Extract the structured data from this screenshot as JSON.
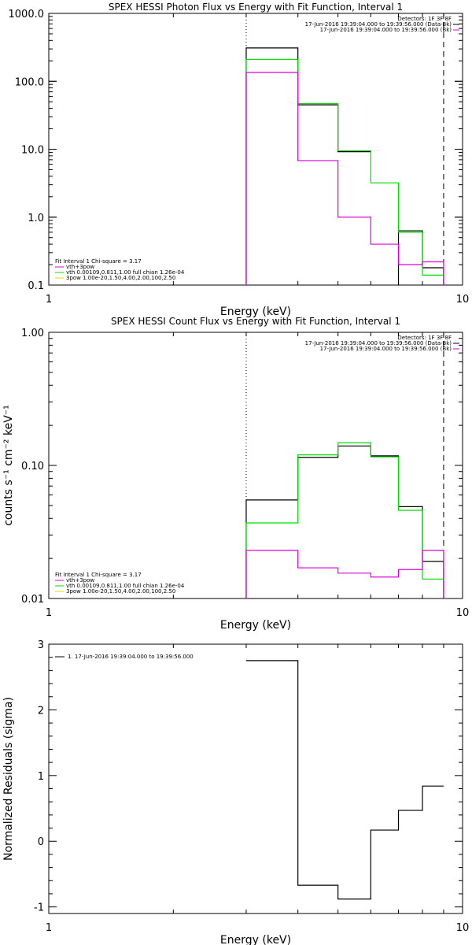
{
  "chart_data": [
    {
      "type": "line",
      "title": "SPEX HESSI Photon Flux vs Energy with Fit Function, Interval 1",
      "xlabel": "Energy (keV)",
      "ylabel": "",
      "xscale": "log",
      "yscale": "log",
      "xlim": [
        1,
        10
      ],
      "ylim": [
        0.1,
        1000
      ],
      "x_ticks": [
        1,
        10
      ],
      "y_ticks": [
        0.1,
        1.0,
        10.0,
        100.0,
        1000.0
      ],
      "x_tick_labels": [
        "1",
        "10"
      ],
      "y_tick_labels": [
        "0.1",
        "1.0",
        "10.0",
        "100.0",
        "1000.0"
      ],
      "vlines": [
        {
          "x": 3.0,
          "style": "dotted"
        },
        {
          "x": 9.0,
          "style": "dashed"
        }
      ],
      "legend_top_right": [
        "Detectors: 1F 3F 8F",
        "17-Jun-2016 19:39:04.000 to 19:39:56.000 (Data-Bk)",
        "17-Jun-2016 19:39:04.000 to 19:39:56.000 (Bk)"
      ],
      "legend_bottom_left": [
        "Fit Interval  1     Chi-square = 3.17",
        "vth+3pow",
        "vth 0.00109,0.811,1.00  full chian 1.26e-04",
        "3pow 1.00e-20,1.50,4.00,2.00,100,2.50"
      ],
      "series": [
        {
          "name": "(Data-Bk)",
          "color": "#000000",
          "step": true,
          "bin_edges": [
            3.0,
            4.0,
            5.0,
            6.0,
            7.0,
            8.0,
            9.0
          ],
          "values": [
            310,
            45,
            9.2,
            null,
            0.63,
            0.18
          ]
        },
        {
          "name": "vth+3pow",
          "color": "#00dd00",
          "step": true,
          "bin_edges": [
            3.0,
            4.0,
            5.0,
            6.0,
            7.0,
            8.0,
            9.0
          ],
          "values": [
            210,
            47,
            9.5,
            3.2,
            0.6,
            0.14
          ]
        },
        {
          "name": "(Bk)",
          "color": "#dd00dd",
          "step": true,
          "bin_edges": [
            3.0,
            4.0,
            5.0,
            6.0,
            7.0,
            8.0,
            9.0
          ],
          "values": [
            135,
            6.8,
            1.0,
            0.4,
            0.2,
            0.22
          ]
        }
      ]
    },
    {
      "type": "line",
      "title": "SPEX HESSI Count Flux vs Energy with Fit Function, Interval 1",
      "xlabel": "Energy (keV)",
      "ylabel": "counts s⁻¹ cm⁻² keV⁻¹",
      "xscale": "log",
      "yscale": "log",
      "xlim": [
        1,
        10
      ],
      "ylim": [
        0.01,
        1.0
      ],
      "x_ticks": [
        1,
        10
      ],
      "y_ticks": [
        0.01,
        0.1,
        1.0
      ],
      "x_tick_labels": [
        "1",
        "10"
      ],
      "y_tick_labels": [
        "0.01",
        "0.10",
        "1.00"
      ],
      "vlines": [
        {
          "x": 3.0,
          "style": "dotted"
        },
        {
          "x": 9.0,
          "style": "dashed"
        }
      ],
      "legend_top_right": [
        "Detectors: 1F 3F 8F",
        "17-Jun-2016 19:39:04.000 to 19:39:56.000 (Data-Bk)",
        "17-Jun-2016 19:39:04.000 to 19:39:56.000 (Bk)"
      ],
      "legend_bottom_left": [
        "Fit Interval  1     Chi-square = 3.17",
        "vth+3pow",
        "vth 0.00109,0.811,1.00  full chian 1.26e-04",
        "3pow 1.00e-20,1.50,4.00,2.00,100,2.50"
      ],
      "series": [
        {
          "name": "(Data-Bk)",
          "color": "#000000",
          "step": true,
          "bin_edges": [
            3.0,
            4.0,
            5.0,
            6.0,
            7.0,
            8.0,
            9.0
          ],
          "values": [
            0.055,
            0.115,
            0.14,
            0.118,
            0.049,
            0.019
          ]
        },
        {
          "name": "vth+3pow",
          "color": "#00dd00",
          "step": true,
          "bin_edges": [
            3.0,
            4.0,
            5.0,
            6.0,
            7.0,
            8.0,
            9.0
          ],
          "values": [
            0.037,
            0.12,
            0.148,
            0.116,
            0.046,
            0.014
          ]
        },
        {
          "name": "(Bk)",
          "color": "#dd00dd",
          "step": true,
          "bin_edges": [
            3.0,
            4.0,
            5.0,
            6.0,
            7.0,
            8.0,
            9.0
          ],
          "values": [
            0.023,
            0.017,
            0.0155,
            0.0145,
            0.0165,
            0.023
          ]
        }
      ]
    },
    {
      "type": "line",
      "title": "",
      "xlabel": "Energy (keV)",
      "ylabel": "Normalized Residuals (sigma)",
      "xscale": "log",
      "yscale": "linear",
      "xlim": [
        1,
        10
      ],
      "ylim": [
        -1.1,
        3.0
      ],
      "x_ticks": [
        1,
        10
      ],
      "y_ticks": [
        -1,
        0,
        1,
        2,
        3
      ],
      "x_tick_labels": [
        "1",
        "10"
      ],
      "y_tick_labels": [
        "-1",
        "0",
        "1",
        "2",
        "3"
      ],
      "vlines": [],
      "legend_top_left": [
        "1. 17-Jun-2016 19:39:04.000 to 19:39:56.000"
      ],
      "series": [
        {
          "name": "1. 17-Jun-2016 19:39:04.000 to 19:39:56.000",
          "color": "#000000",
          "step": true,
          "bin_edges": [
            3.0,
            4.0,
            5.0,
            6.0,
            7.0,
            8.0,
            9.0
          ],
          "values": [
            2.75,
            -0.67,
            -0.88,
            0.17,
            0.47,
            0.84
          ]
        }
      ]
    }
  ]
}
